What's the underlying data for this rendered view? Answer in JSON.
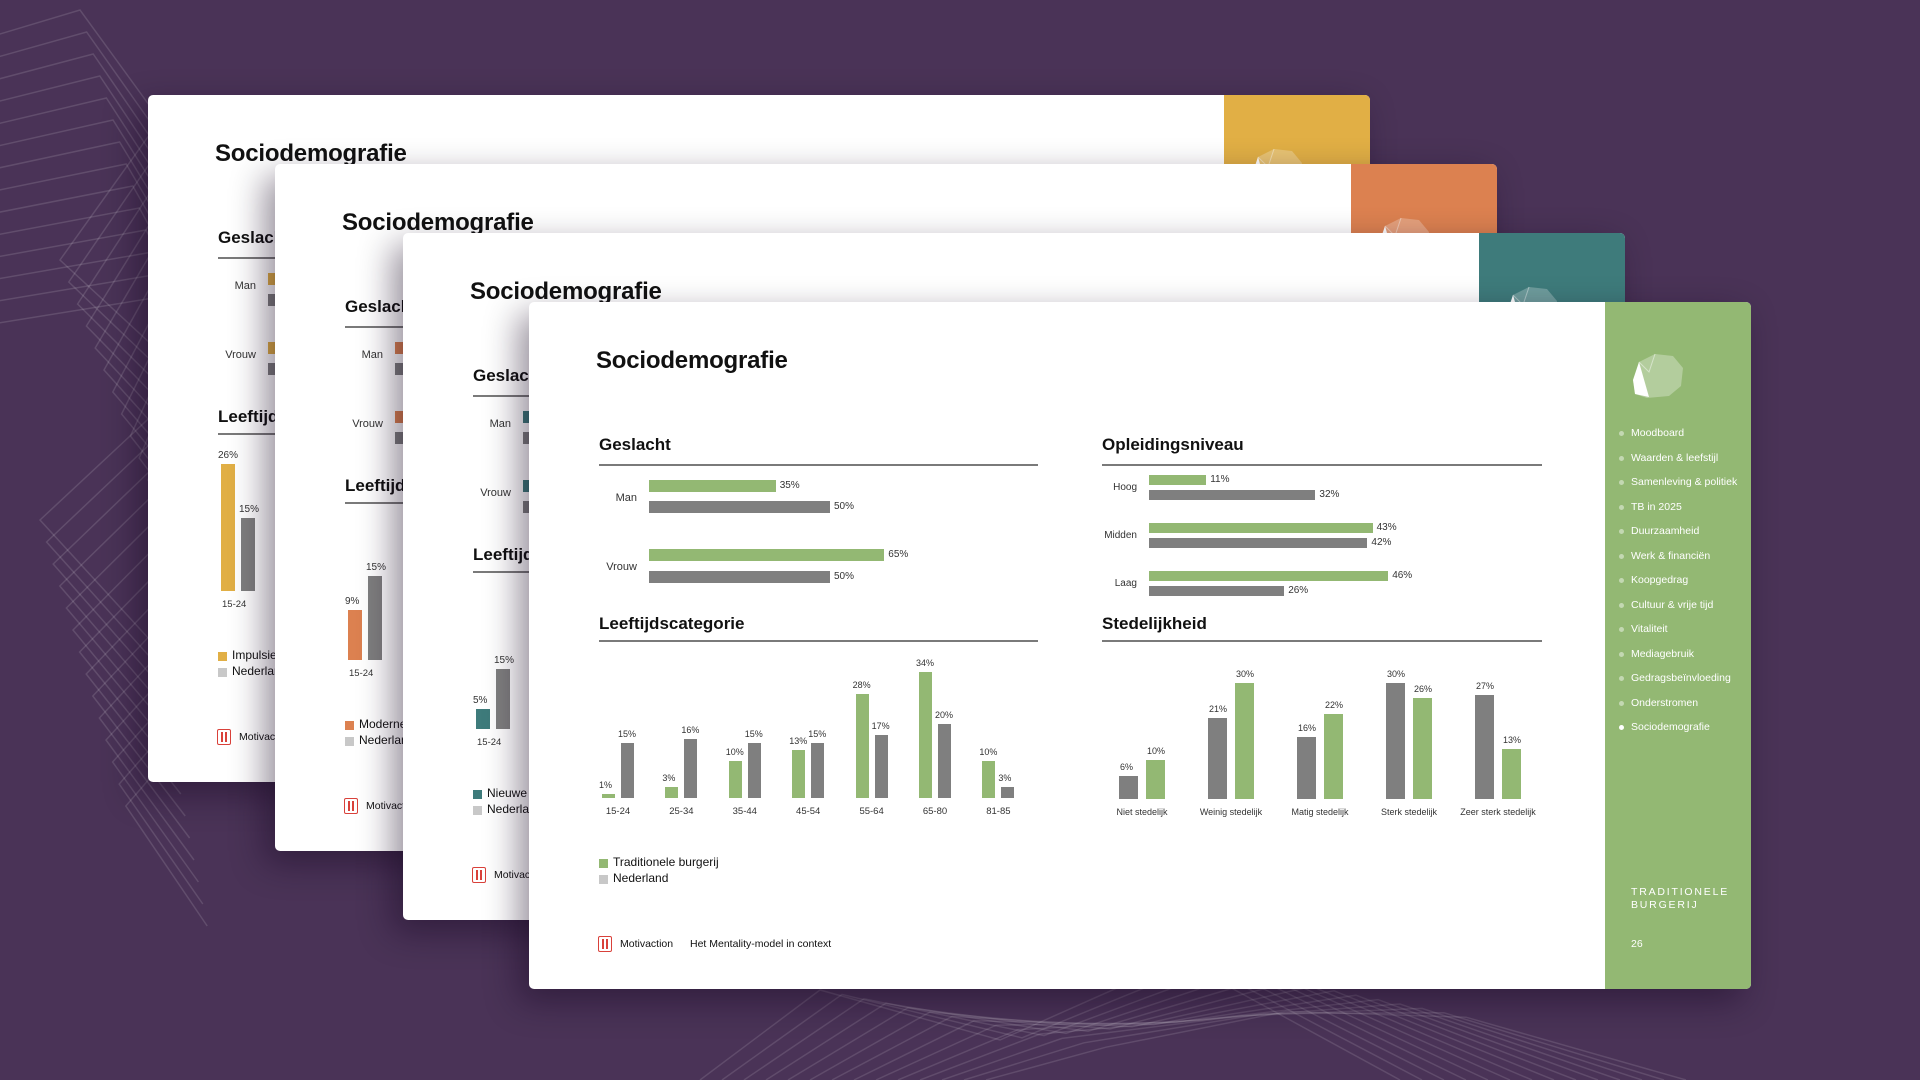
{
  "colors": {
    "background": "#4a3357",
    "group_green": "#93b873",
    "netherlands_gray": "#7f7f7f",
    "legend_gray": "#c8c8c8",
    "sidebar_green": "#93b873",
    "motivaction_red": "#d9413a"
  },
  "back_slides": [
    {
      "accent": "#e1af45",
      "title": "Sociodemografie",
      "gender_header": "Geslacht",
      "gender_labels": [
        "Man",
        "Vrouw"
      ],
      "age_header": "Leeftijdscategorie",
      "age_category": "15-24",
      "age_group_value": 26,
      "age_nl_value": 15,
      "legend_group": "Impulsie",
      "legend_nl": "Nederland",
      "footer_brand": "Motivaction"
    },
    {
      "accent": "#dc8150",
      "title": "Sociodemografie",
      "gender_header": "Geslacht",
      "gender_labels": [
        "Man",
        "Vrouw"
      ],
      "age_header": "Leeftijdscategorie",
      "age_category": "15-24",
      "age_group_value": 9,
      "age_nl_value": 15,
      "legend_group": "Moderne",
      "legend_nl": "Nederland",
      "footer_brand": "Motivaction"
    },
    {
      "accent": "#3e7b7b",
      "title": "Sociodemografie",
      "gender_header": "Geslacht",
      "gender_labels": [
        "Man",
        "Vrouw"
      ],
      "age_header": "Leeftijdscategorie",
      "age_category": "15-24",
      "age_group_value": 5,
      "age_nl_value": 15,
      "legend_group": "Nieuwe",
      "legend_nl": "Nederland",
      "footer_brand": "Motivaction"
    }
  ],
  "main_slide": {
    "title": "Sociodemografie",
    "legend": {
      "group": "Traditionele burgerij",
      "nl": "Nederland"
    },
    "footer": {
      "brand": "Motivaction",
      "subtitle": "Het Mentality-model in context"
    },
    "sidebar": {
      "nav": [
        "Moodboard",
        "Waarden & leefstijl",
        "Samenleving & politiek",
        "TB in 2025",
        "Duurzaamheid",
        "Werk & financiën",
        "Koopgedrag",
        "Cultuur & vrije tijd",
        "Vitaliteit",
        "Mediagebruik",
        "Gedragsbeïnvloeding",
        "Onderstromen",
        "Sociodemografie"
      ],
      "active_index": 12,
      "segment_label": "TRADITIONELE\nBURGERIJ",
      "page_number": "26"
    }
  },
  "chart_data": [
    {
      "id": "gender",
      "type": "bar",
      "orientation": "horizontal",
      "title": "Geslacht",
      "categories": [
        "Man",
        "Vrouw"
      ],
      "series": [
        {
          "name": "Traditionele burgerij",
          "values": [
            35,
            65
          ]
        },
        {
          "name": "Nederland",
          "values": [
            50,
            50
          ]
        }
      ],
      "unit": "%"
    },
    {
      "id": "education",
      "type": "bar",
      "orientation": "horizontal",
      "title": "Opleidingsniveau",
      "categories": [
        "Hoog",
        "Midden",
        "Laag"
      ],
      "series": [
        {
          "name": "Traditionele burgerij",
          "values": [
            11,
            43,
            46
          ]
        },
        {
          "name": "Nederland",
          "values": [
            32,
            42,
            26
          ]
        }
      ],
      "unit": "%"
    },
    {
      "id": "age",
      "type": "bar",
      "orientation": "vertical",
      "title": "Leeftijdscategorie",
      "categories": [
        "15-24",
        "25-34",
        "35-44",
        "45-54",
        "55-64",
        "65-80",
        "81-85"
      ],
      "series": [
        {
          "name": "Traditionele burgerij",
          "values": [
            1,
            3,
            10,
            13,
            28,
            34,
            10
          ]
        },
        {
          "name": "Nederland",
          "values": [
            15,
            16,
            15,
            15,
            17,
            20,
            3
          ]
        }
      ],
      "unit": "%"
    },
    {
      "id": "urban",
      "type": "bar",
      "orientation": "vertical",
      "title": "Stedelijkheid",
      "categories": [
        "Niet stedelijk",
        "Weinig stedelijk",
        "Matig stedelijk",
        "Sterk stedelijk",
        "Zeer sterk stedelijk"
      ],
      "series": [
        {
          "name": "Nederland",
          "values": [
            6,
            21,
            16,
            30,
            27
          ]
        },
        {
          "name": "Traditionele burgerij",
          "values": [
            10,
            30,
            22,
            26,
            13
          ]
        }
      ],
      "unit": "%"
    }
  ]
}
